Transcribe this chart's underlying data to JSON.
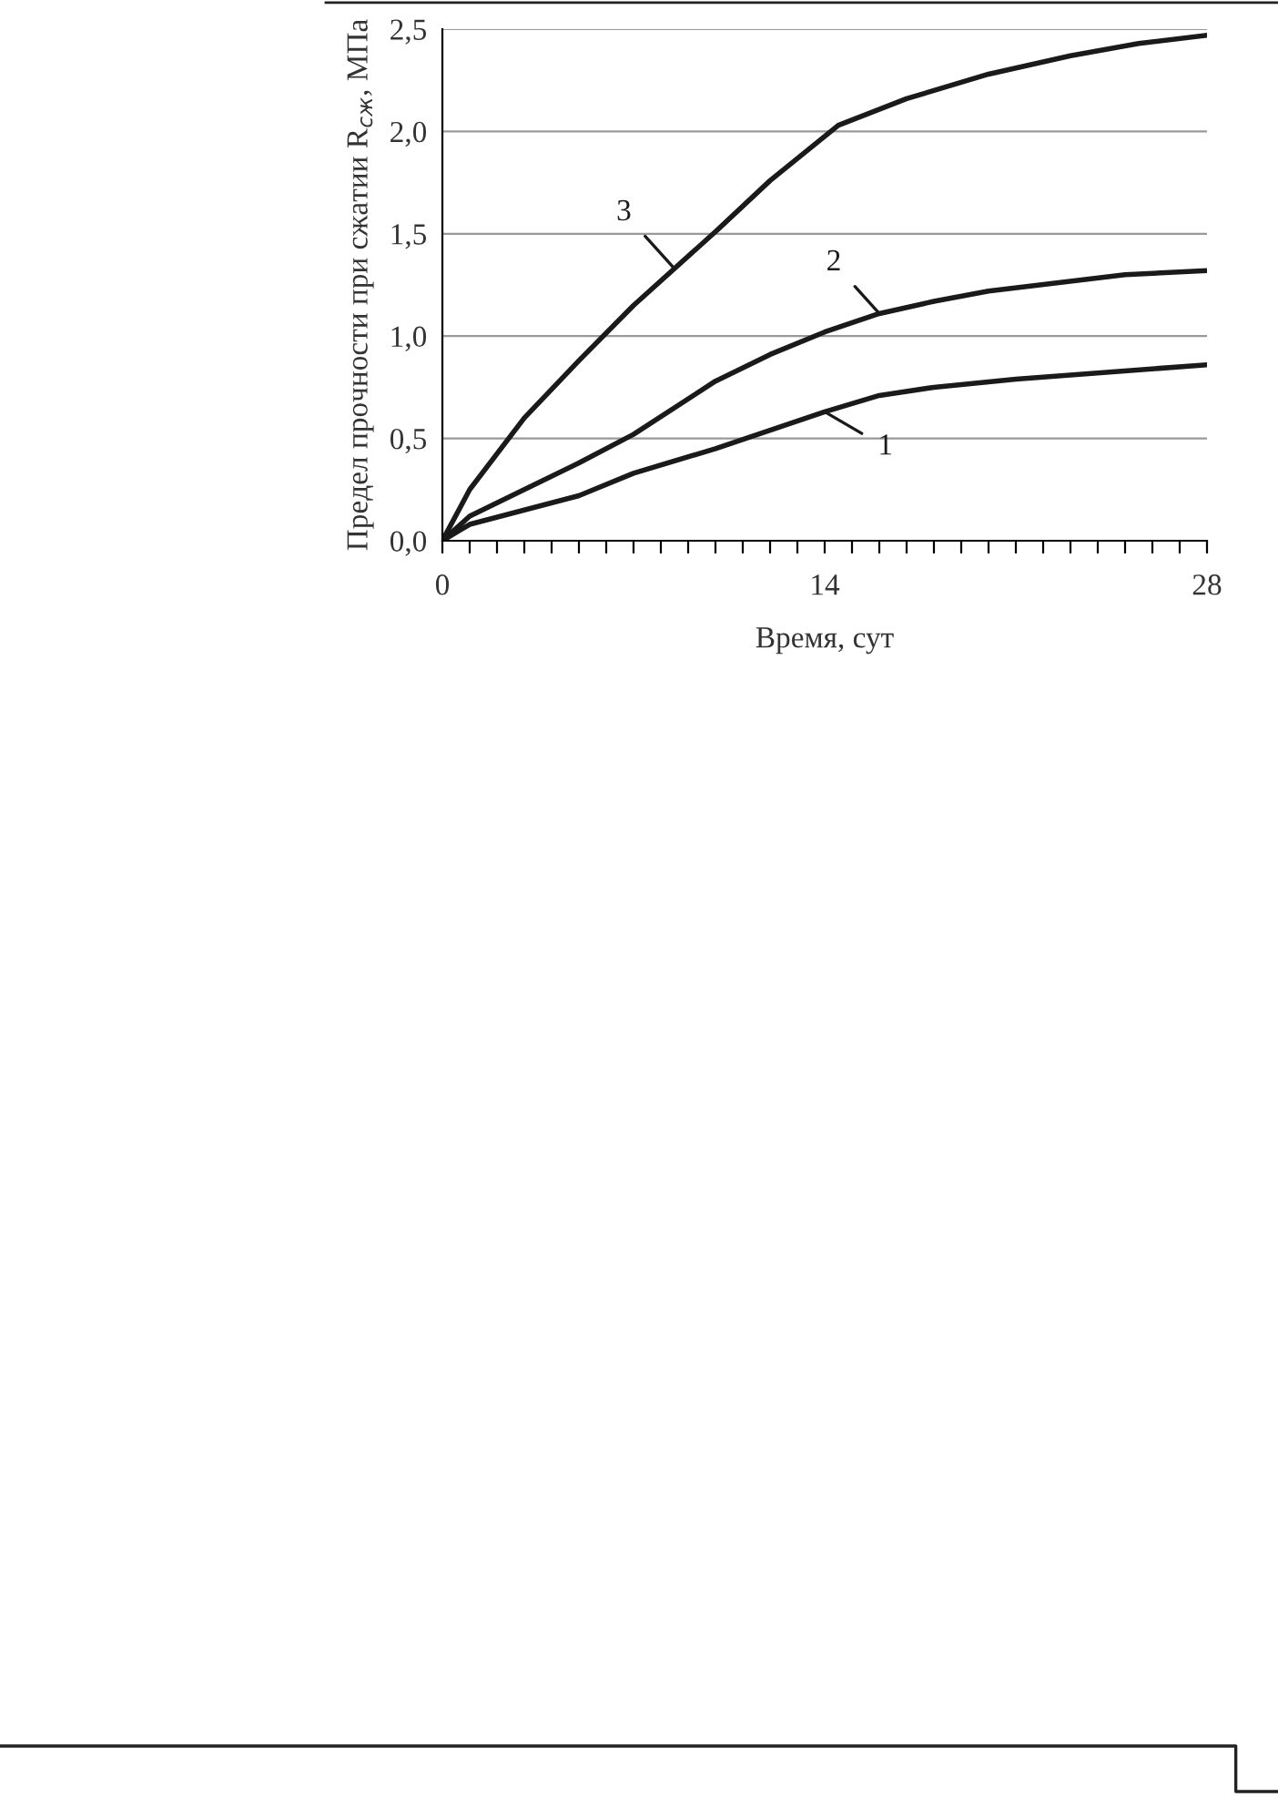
{
  "chart_data": {
    "type": "line",
    "xlabel": "Время, сут",
    "ylabel": "Предел прочности при сжатии R$_{сж}$, МПа",
    "series": [
      {
        "name": "1",
        "color": "#1a1a1a",
        "x": [
          0,
          1,
          3,
          5,
          7,
          10,
          14,
          16,
          18,
          21,
          28
        ],
        "values": [
          0,
          0.08,
          0.15,
          0.22,
          0.33,
          0.45,
          0.63,
          0.71,
          0.75,
          0.79,
          0.86
        ]
      },
      {
        "name": "2",
        "color": "#1a1a1a",
        "x": [
          0,
          1,
          3,
          5,
          7,
          10,
          12,
          14,
          16,
          18,
          20,
          25,
          28
        ],
        "values": [
          0,
          0.12,
          0.25,
          0.38,
          0.52,
          0.78,
          0.91,
          1.02,
          1.11,
          1.17,
          1.22,
          1.3,
          1.32
        ]
      },
      {
        "name": "3",
        "color": "#1a1a1a",
        "x": [
          0,
          1,
          3,
          5,
          7,
          10,
          12,
          14.5,
          17,
          20,
          23,
          25.5,
          28
        ],
        "values": [
          0,
          0.25,
          0.6,
          0.88,
          1.15,
          1.51,
          1.76,
          2.03,
          2.16,
          2.28,
          2.37,
          2.43,
          2.47
        ]
      }
    ],
    "xlim": [
      0,
      28
    ],
    "xticks": [
      0,
      {
        "value": 1,
        "label": null
      },
      {
        "value": 2,
        "label": null
      },
      {
        "value": 3,
        "label": null
      },
      {
        "value": 4,
        "label": null
      },
      {
        "value": 5,
        "label": null
      },
      {
        "value": 6,
        "label": null
      },
      {
        "value": 7,
        "label": null
      },
      {
        "value": 8,
        "label": null
      },
      {
        "value": 9,
        "label": null
      },
      {
        "value": 10,
        "label": null
      },
      {
        "value": 11,
        "label": null
      },
      {
        "value": 12,
        "label": null
      },
      {
        "value": 13,
        "label": null
      },
      14,
      {
        "value": 15,
        "label": null
      },
      {
        "value": 16,
        "label": null
      },
      {
        "value": 17,
        "label": null
      },
      {
        "value": 18,
        "label": null
      },
      {
        "value": 19,
        "label": null
      },
      {
        "value": 20,
        "label": null
      },
      {
        "value": 21,
        "label": null
      },
      {
        "value": 22,
        "label": null
      },
      {
        "value": 23,
        "label": null
      },
      {
        "value": 24,
        "label": null
      },
      {
        "value": 25,
        "label": null
      },
      {
        "value": 26,
        "label": null
      },
      {
        "value": 27,
        "label": null
      },
      28
    ],
    "ylim": [
      0,
      2.5
    ],
    "yticks": [
      {
        "value": 0,
        "label": "0,0"
      },
      {
        "value": 0.5,
        "label": "0,5"
      },
      {
        "value": 1.0,
        "label": "1,0"
      },
      {
        "value": 1.5,
        "label": "1,5"
      },
      {
        "value": 2.0,
        "label": "2,0"
      },
      {
        "value": 2.5,
        "label": "2,5"
      }
    ],
    "grid": "y",
    "legend": false,
    "marker": "none",
    "line_style": "solid"
  }
}
